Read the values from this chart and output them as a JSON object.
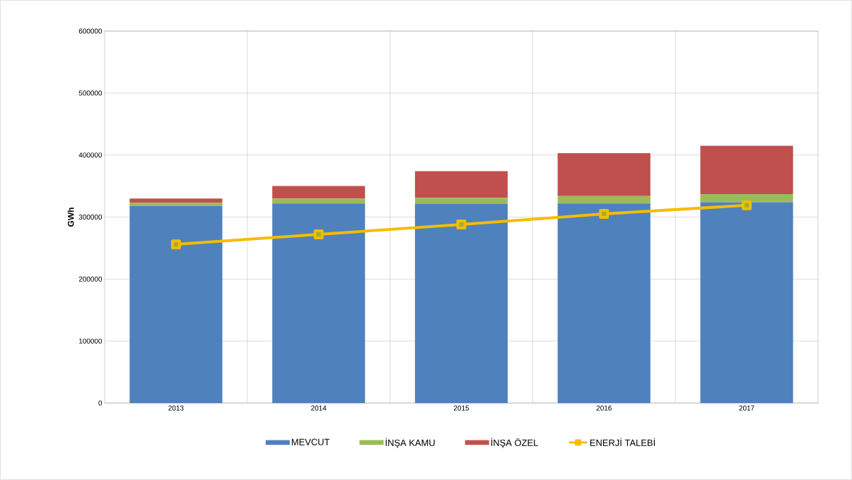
{
  "chart_data": {
    "type": "bar",
    "stacked": true,
    "ylabel": "GWh",
    "categories": [
      "2013",
      "2014",
      "2015",
      "2016",
      "2017"
    ],
    "series": [
      {
        "name": "MEVCUT",
        "color": "#4f81bd",
        "values": [
          318000,
          322000,
          321000,
          322000,
          324000
        ]
      },
      {
        "name": "İNŞA KAMU",
        "color": "#9bbb59",
        "values": [
          5000,
          8000,
          10000,
          12000,
          13000
        ]
      },
      {
        "name": "İNŞA ÖZEL",
        "color": "#c0504d",
        "values": [
          7000,
          20000,
          43000,
          69000,
          78000
        ]
      },
      {
        "name": "ENERJİ TALEBİ",
        "type": "line",
        "color": "#f5bc00",
        "marker": "square",
        "values": [
          256000,
          272000,
          288000,
          305000,
          319000
        ]
      }
    ],
    "ylim": [
      0,
      600000
    ],
    "yticks": [
      0,
      100000,
      200000,
      300000,
      400000,
      500000,
      600000
    ],
    "grid": true,
    "legend": "bottom"
  }
}
